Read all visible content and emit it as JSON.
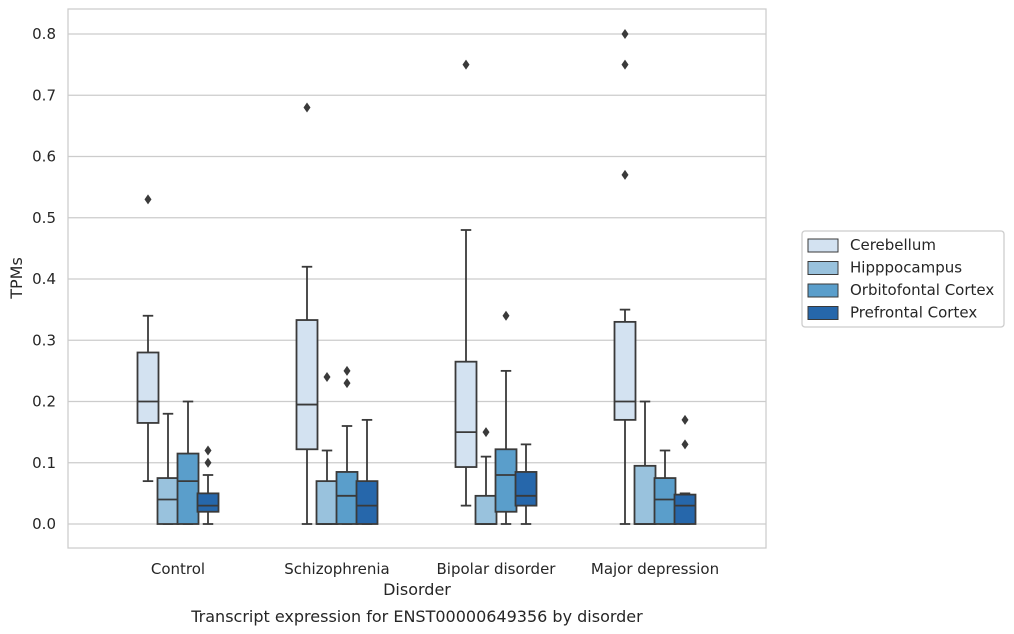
{
  "chart_data": {
    "type": "box",
    "title": "",
    "caption": "Transcript expression for ENST00000649356 by disorder",
    "xlabel": "Disorder",
    "ylabel": "TPMs",
    "ylim": [
      -0.04,
      0.84
    ],
    "yticks": [
      "0.0",
      "0.1",
      "0.2",
      "0.3",
      "0.4",
      "0.5",
      "0.6",
      "0.7",
      "0.8"
    ],
    "ytick_values": [
      0.0,
      0.1,
      0.2,
      0.3,
      0.4,
      0.5,
      0.6,
      0.7,
      0.8
    ],
    "grid": "horizontal",
    "legend_position": "right",
    "categories": [
      "Control",
      "Schizophrenia",
      "Bipolar disorder",
      "Major depression"
    ],
    "series": [
      {
        "name": "Cerebellum",
        "color": "#d3e2f1",
        "boxes": [
          {
            "whisker_low": 0.07,
            "q1": 0.165,
            "median": 0.2,
            "q3": 0.28,
            "whisker_high": 0.34,
            "outliers": [
              0.53
            ]
          },
          {
            "whisker_low": 0.0,
            "q1": 0.122,
            "median": 0.195,
            "q3": 0.333,
            "whisker_high": 0.42,
            "outliers": [
              0.68
            ]
          },
          {
            "whisker_low": 0.03,
            "q1": 0.093,
            "median": 0.15,
            "q3": 0.265,
            "whisker_high": 0.48,
            "outliers": [
              0.75
            ]
          },
          {
            "whisker_low": 0.0,
            "q1": 0.17,
            "median": 0.2,
            "q3": 0.33,
            "whisker_high": 0.35,
            "outliers": [
              0.57,
              0.75,
              0.8
            ]
          }
        ]
      },
      {
        "name": "Hipppocampus",
        "color": "#99c2dd",
        "boxes": [
          {
            "whisker_low": 0.0,
            "q1": 0.0,
            "median": 0.04,
            "q3": 0.075,
            "whisker_high": 0.18,
            "outliers": []
          },
          {
            "whisker_low": 0.0,
            "q1": 0.0,
            "median": 0.0,
            "q3": 0.07,
            "whisker_high": 0.12,
            "outliers": [
              0.24
            ]
          },
          {
            "whisker_low": 0.0,
            "q1": 0.0,
            "median": 0.0,
            "q3": 0.046,
            "whisker_high": 0.11,
            "outliers": [
              0.15
            ]
          },
          {
            "whisker_low": 0.0,
            "q1": 0.0,
            "median": 0.0,
            "q3": 0.095,
            "whisker_high": 0.2,
            "outliers": []
          }
        ]
      },
      {
        "name": "Orbitofontal Cortex",
        "color": "#5a9ecb",
        "boxes": [
          {
            "whisker_low": 0.0,
            "q1": 0.0,
            "median": 0.07,
            "q3": 0.115,
            "whisker_high": 0.2,
            "outliers": []
          },
          {
            "whisker_low": 0.0,
            "q1": 0.0,
            "median": 0.046,
            "q3": 0.085,
            "whisker_high": 0.16,
            "outliers": [
              0.23,
              0.25
            ]
          },
          {
            "whisker_low": 0.0,
            "q1": 0.02,
            "median": 0.08,
            "q3": 0.122,
            "whisker_high": 0.25,
            "outliers": [
              0.34
            ]
          },
          {
            "whisker_low": 0.0,
            "q1": 0.0,
            "median": 0.04,
            "q3": 0.075,
            "whisker_high": 0.12,
            "outliers": []
          }
        ]
      },
      {
        "name": "Prefrontal Cortex",
        "color": "#2667ab",
        "boxes": [
          {
            "whisker_low": 0.0,
            "q1": 0.02,
            "median": 0.03,
            "q3": 0.05,
            "whisker_high": 0.08,
            "outliers": [
              0.1,
              0.12
            ]
          },
          {
            "whisker_low": 0.0,
            "q1": 0.0,
            "median": 0.03,
            "q3": 0.07,
            "whisker_high": 0.17,
            "outliers": []
          },
          {
            "whisker_low": 0.0,
            "q1": 0.03,
            "median": 0.046,
            "q3": 0.085,
            "whisker_high": 0.13,
            "outliers": []
          },
          {
            "whisker_low": 0.0,
            "q1": 0.0,
            "median": 0.03,
            "q3": 0.048,
            "whisker_high": 0.05,
            "outliers": [
              0.13,
              0.17
            ]
          }
        ]
      }
    ]
  }
}
